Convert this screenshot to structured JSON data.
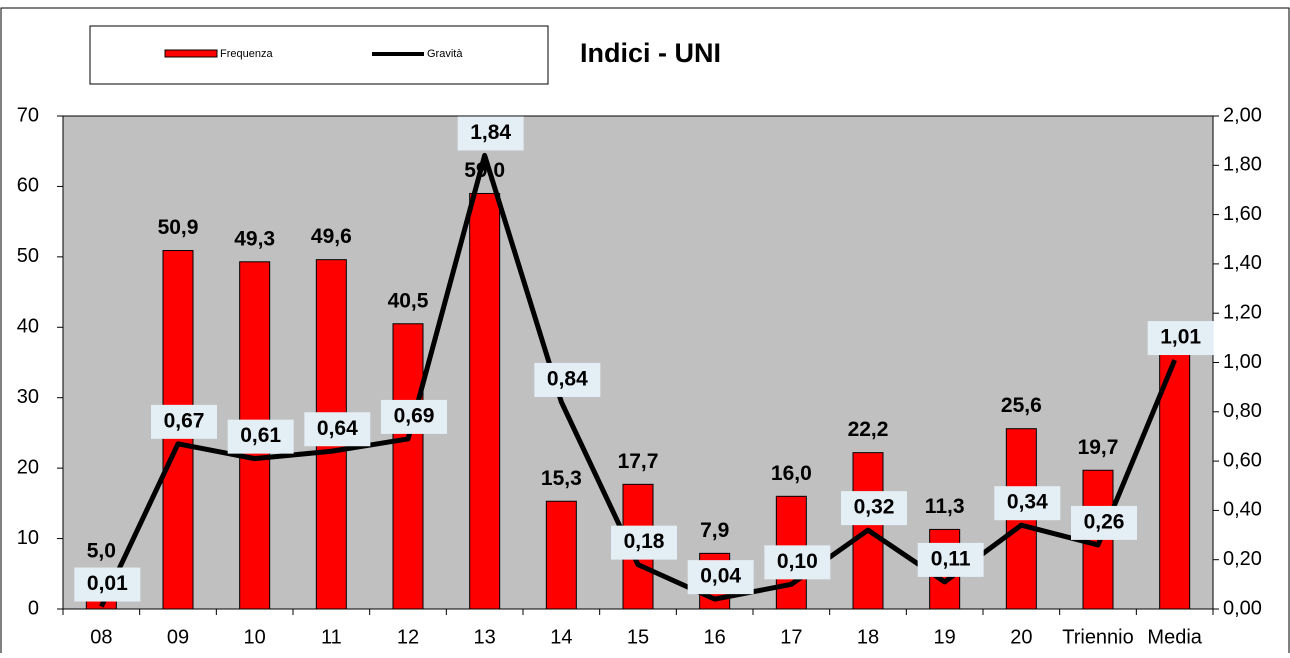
{
  "chart_data": {
    "type": "bar_line",
    "title": "Indici - UNI",
    "categories": [
      "08",
      "09",
      "10",
      "11",
      "12",
      "13",
      "14",
      "15",
      "16",
      "17",
      "18",
      "19",
      "20",
      "Triennio",
      "Media"
    ],
    "series": [
      {
        "name": "Frequenza",
        "type": "bar",
        "color": "#ff0000",
        "values": [
          5.0,
          50.9,
          49.3,
          49.6,
          40.5,
          59.0,
          15.3,
          17.7,
          7.9,
          16.0,
          22.2,
          11.3,
          25.6,
          19.7,
          37.7
        ],
        "value_labels": [
          "5,0",
          "50,9",
          "49,3",
          "49,6",
          "40,5",
          "59,0",
          "15,3",
          "17,7",
          "7,9",
          "16,0",
          "22,2",
          "11,3",
          "25,6",
          "19,7",
          null
        ]
      },
      {
        "name": "Gravità",
        "type": "line",
        "axis": "y2",
        "color": "#000000",
        "values": [
          0.01,
          0.67,
          0.61,
          0.64,
          0.69,
          1.84,
          0.84,
          0.18,
          0.04,
          0.1,
          0.32,
          0.11,
          0.34,
          0.26,
          1.01
        ],
        "value_labels": [
          "0,01",
          "0,67",
          "0,61",
          "0,64",
          "0,69",
          "1,84",
          "0,84",
          "0,18",
          "0,04",
          "0,10",
          "0,32",
          "0,11",
          "0,34",
          "0,26",
          "1,01"
        ]
      }
    ],
    "ylim": [
      0,
      70
    ],
    "yticks": [
      0,
      10,
      20,
      30,
      40,
      50,
      60,
      70
    ],
    "y2lim": [
      0,
      2
    ],
    "y2ticks": [
      {
        "value": 0,
        "label": "0,00"
      },
      {
        "value": 0.2,
        "label": "0,20"
      },
      {
        "value": 0.4,
        "label": "0,40"
      },
      {
        "value": 0.6,
        "label": "0,60"
      },
      {
        "value": 0.8,
        "label": "0,80"
      },
      {
        "value": 1.0,
        "label": "1,00"
      },
      {
        "value": 1.2,
        "label": "1,20"
      },
      {
        "value": 1.4,
        "label": "1,40"
      },
      {
        "value": 1.6,
        "label": "1,60"
      },
      {
        "value": 1.8,
        "label": "1,80"
      },
      {
        "value": 2.0,
        "label": "2,00"
      }
    ],
    "legend": "top-left",
    "background": "#c0c0c0"
  }
}
